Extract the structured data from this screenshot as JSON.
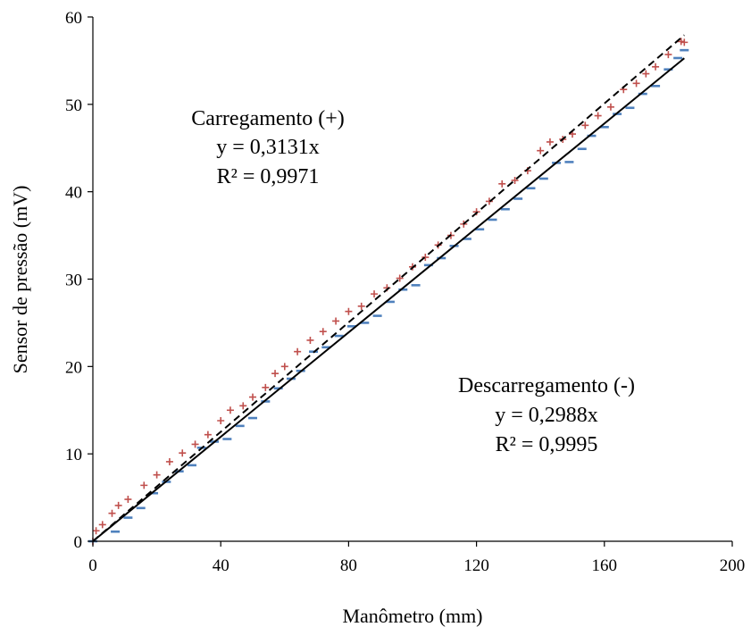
{
  "chart_data": {
    "type": "scatter",
    "xlabel": "Manômetro (mm)",
    "ylabel": "Sensor de pressão (mV)",
    "xlim": [
      0,
      200
    ],
    "ylim": [
      0,
      60
    ],
    "xticks": [
      "0",
      "40",
      "80",
      "120",
      "160",
      "200"
    ],
    "yticks": [
      "0",
      "10",
      "20",
      "30",
      "40",
      "50",
      "60"
    ],
    "grid": false,
    "series": [
      {
        "marker": "plus",
        "color": "#c0504d",
        "x": [
          0,
          1,
          3,
          6,
          8,
          11,
          16,
          20,
          24,
          28,
          32,
          36,
          40,
          43,
          47,
          50,
          54,
          57,
          60,
          64,
          68,
          72,
          76,
          80,
          84,
          88,
          92,
          96,
          100,
          104,
          108,
          112,
          116,
          120,
          124,
          128,
          132,
          136,
          140,
          143,
          147,
          150,
          154,
          158,
          162,
          166,
          170,
          173,
          176,
          180,
          184,
          185
        ],
        "y": [
          0,
          1.2,
          1.9,
          3.2,
          4.1,
          4.8,
          6.4,
          7.6,
          9.1,
          10.1,
          11.1,
          12.2,
          13.8,
          15.0,
          15.5,
          16.5,
          17.6,
          19.2,
          20.0,
          21.7,
          23.0,
          24.0,
          25.2,
          26.3,
          26.9,
          28.3,
          29.0,
          30.1,
          31.4,
          32.5,
          33.9,
          35.0,
          36.3,
          37.7,
          38.9,
          40.9,
          41.3,
          42.4,
          44.7,
          45.7,
          46.0,
          46.6,
          47.6,
          48.7,
          49.7,
          51.7,
          52.4,
          53.5,
          54.3,
          55.7,
          57.2,
          57.1
        ],
        "fit": {
          "slope": 0.3131,
          "equation": "y = 0,3131x",
          "r2": "R² = 0,9971",
          "label": "Carregamento (+)",
          "line_style": "dashed"
        }
      },
      {
        "marker": "dash",
        "color": "#4f81bd",
        "x": [
          0,
          7,
          11,
          15,
          19,
          23,
          27,
          31,
          34,
          38,
          42,
          46,
          50,
          54,
          58,
          62,
          65,
          69,
          73,
          77,
          81,
          85,
          89,
          93,
          97,
          101,
          105,
          109,
          113,
          117,
          121,
          125,
          129,
          133,
          137,
          141,
          145,
          149,
          153,
          156,
          160,
          164,
          168,
          172,
          176,
          180,
          183,
          185
        ],
        "y": [
          0,
          1.1,
          2.7,
          3.8,
          5.5,
          6.8,
          8.0,
          8.7,
          10.7,
          11.4,
          11.7,
          13.2,
          14.1,
          16.0,
          17.5,
          18.6,
          19.5,
          21.7,
          22.2,
          23.5,
          24.6,
          25.0,
          25.8,
          27.4,
          28.8,
          29.3,
          31.6,
          32.4,
          33.8,
          34.6,
          35.7,
          36.8,
          38.0,
          39.2,
          40.4,
          41.5,
          43.3,
          43.4,
          44.9,
          46.4,
          47.4,
          48.9,
          49.6,
          51.2,
          52.1,
          54.0,
          55.3,
          56.2
        ],
        "fit": {
          "slope": 0.2988,
          "equation": "y = 0,2988x",
          "r2": "R² = 0,9995",
          "label": "Descarregamento (-)",
          "line_style": "solid"
        }
      }
    ]
  }
}
